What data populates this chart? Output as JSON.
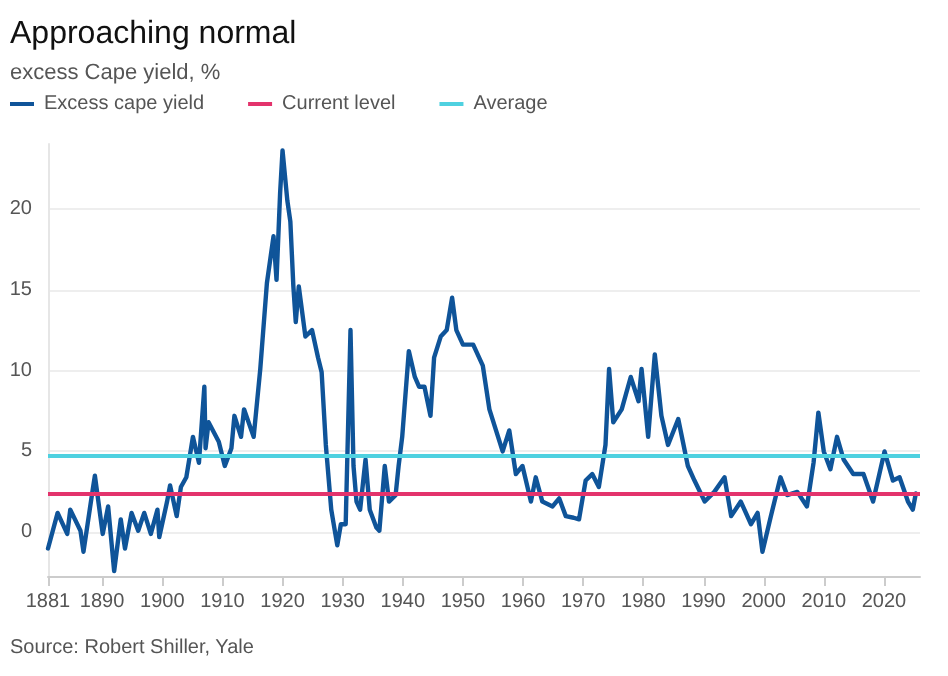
{
  "chart_data": {
    "type": "line",
    "title": "Approaching normal",
    "subtitle": "excess Cape yield, %",
    "annotations": [
      "Source: Robert Shiller, Yale"
    ],
    "legend": "top left",
    "grid": "y",
    "line_style": "solid",
    "marker": "none",
    "xlim": [
      1881,
      2026
    ],
    "xticks": [
      1881,
      1890,
      1900,
      1910,
      1920,
      1930,
      1940,
      1950,
      1960,
      1970,
      1980,
      1990,
      2000,
      2010,
      2020
    ],
    "ylim": [
      -2.7,
      24
    ],
    "yticks": [
      0,
      5,
      10,
      15,
      20
    ],
    "series": [
      {
        "name": "Excess cape yield",
        "color": "#0f5499",
        "x": [
          1881,
          1882.6,
          1884.2,
          1884.7,
          1886.4,
          1886.9,
          1888.5,
          1888.8,
          1890.1,
          1891,
          1892,
          1893.1,
          1893.8,
          1894.9,
          1896,
          1897,
          1898.1,
          1899.2,
          1899.5,
          1900.8,
          1901.3,
          1902.4,
          1903.1,
          1904,
          1905.1,
          1906.1,
          1907,
          1907.2,
          1907.7,
          1909.4,
          1910.4,
          1911.5,
          1912,
          1913.1,
          1913.6,
          1915.2,
          1916.3,
          1917.4,
          1918.5,
          1919,
          1919.6,
          1920,
          1920.8,
          1921.3,
          1921.8,
          1922.2,
          1922.7,
          1923.8,
          1924.9,
          1925.9,
          1926.5,
          1927.2,
          1928.1,
          1929.1,
          1929.7,
          1930.5,
          1931.3,
          1931.8,
          1932.3,
          1932.9,
          1933.8,
          1934.5,
          1935.6,
          1936.1,
          1937,
          1937.7,
          1938.8,
          1939.3,
          1939.9,
          1941,
          1942,
          1942.7,
          1943.6,
          1944.6,
          1945.2,
          1946.3,
          1947.3,
          1948.2,
          1948.9,
          1950,
          1951.7,
          1953.3,
          1954.4,
          1955.5,
          1956.6,
          1957.7,
          1958.8,
          1959.9,
          1961.3,
          1962.1,
          1963.2,
          1964.9,
          1966,
          1967.1,
          1968.4,
          1969.3,
          1970.4,
          1971.5,
          1972.6,
          1973.7,
          1974.3,
          1975,
          1976.4,
          1977.9,
          1979.2,
          1979.7,
          1980.8,
          1981.9,
          1983,
          1984.1,
          1985.8,
          1987.4,
          1988.5,
          1990.2,
          1991.8,
          1993.5,
          1994.6,
          1996.2,
          1997.9,
          1999,
          1999.8,
          2001.2,
          2002.8,
          2003.9,
          2005.6,
          2007.2,
          2008.3,
          2009.1,
          2010,
          2011.1,
          2012.2,
          2013.3,
          2014.9,
          2016.6,
          2018.2,
          2020.1,
          2021.5,
          2022.6,
          2024,
          2024.8,
          2025.3
        ],
        "values": [
          -1.0,
          1.2,
          -0.1,
          1.4,
          0.1,
          -1.2,
          2.8,
          3.5,
          -0.1,
          1.6,
          -2.4,
          0.8,
          -1.0,
          1.2,
          0.1,
          1.2,
          -0.1,
          1.4,
          -0.3,
          1.9,
          2.9,
          1.0,
          2.8,
          3.4,
          5.9,
          4.3,
          9.0,
          5.2,
          6.8,
          5.6,
          4.1,
          5.2,
          7.2,
          5.9,
          7.6,
          5.9,
          10.1,
          15.4,
          18.3,
          15.6,
          21.0,
          23.6,
          20.5,
          19.2,
          15.2,
          13.0,
          15.2,
          12.1,
          12.5,
          10.8,
          9.9,
          5.4,
          1.4,
          -0.8,
          0.5,
          0.5,
          12.5,
          4.1,
          1.9,
          1.4,
          4.5,
          1.4,
          0.3,
          0.1,
          4.1,
          1.9,
          2.3,
          4.1,
          5.9,
          11.2,
          9.6,
          9.0,
          9.0,
          7.2,
          10.8,
          12.1,
          12.5,
          14.5,
          12.5,
          11.6,
          11.6,
          10.3,
          7.6,
          6.3,
          5.0,
          6.3,
          3.6,
          4.1,
          1.9,
          3.4,
          1.9,
          1.6,
          2.1,
          1.0,
          0.9,
          0.8,
          3.2,
          3.6,
          2.8,
          5.4,
          10.1,
          6.8,
          7.6,
          9.6,
          8.1,
          10.1,
          5.9,
          11.0,
          7.2,
          5.4,
          7.0,
          4.1,
          3.2,
          1.9,
          2.5,
          3.4,
          1.0,
          1.9,
          0.5,
          1.2,
          -1.2,
          1.0,
          3.4,
          2.3,
          2.5,
          1.6,
          4.3,
          7.4,
          5.0,
          3.9,
          5.9,
          4.5,
          3.6,
          3.6,
          1.9,
          5.0,
          3.2,
          3.4,
          1.9,
          1.4,
          2.4
        ]
      }
    ],
    "ref_lines": [
      {
        "axis": "y",
        "value": 2.4,
        "label": "Current level",
        "color": "#e3336c"
      },
      {
        "axis": "y",
        "value": 4.8,
        "label": "Average",
        "color": "#4fd1e0"
      }
    ]
  }
}
